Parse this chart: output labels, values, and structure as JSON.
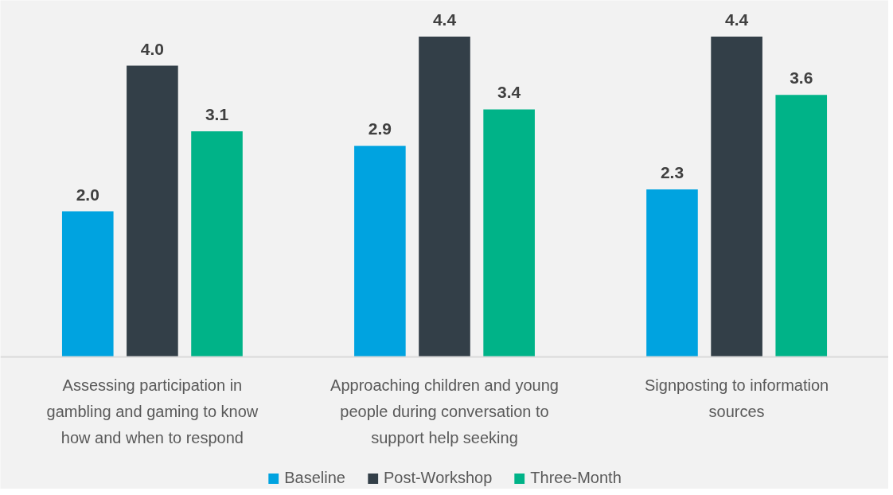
{
  "chart_data": {
    "type": "bar",
    "categories": [
      "Assessing participation in gambling and gaming to know how and when to respond",
      "Approaching children and young people during conversation to support help seeking",
      "Signposting to information sources"
    ],
    "series": [
      {
        "name": "Baseline",
        "color": "#00a3e0",
        "values": [
          2.0,
          2.9,
          2.3
        ],
        "value_labels": [
          "2.0",
          "2.9",
          "2.3"
        ]
      },
      {
        "name": "Post-Workshop",
        "color": "#333f48",
        "values": [
          4.0,
          4.4,
          4.4
        ],
        "value_labels": [
          "4.0",
          "4.4",
          "4.4"
        ]
      },
      {
        "name": "Three-Month",
        "color": "#00b388",
        "values": [
          3.1,
          3.4,
          3.6
        ],
        "value_labels": [
          "3.1",
          "3.4",
          "3.6"
        ]
      }
    ],
    "legend": "bottom",
    "grid": false,
    "tick_labels": "x"
  }
}
